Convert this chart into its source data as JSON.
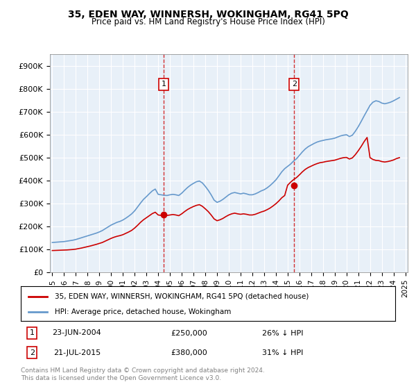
{
  "title": "35, EDEN WAY, WINNERSH, WOKINGHAM, RG41 5PQ",
  "subtitle": "Price paid vs. HM Land Registry's House Price Index (HPI)",
  "legend_line1": "35, EDEN WAY, WINNERSH, WOKINGHAM, RG41 5PQ (detached house)",
  "legend_line2": "HPI: Average price, detached house, Wokingham",
  "annotation1": [
    "1",
    "23-JUN-2004",
    "£250,000",
    "26% ↓ HPI"
  ],
  "annotation2": [
    "2",
    "21-JUL-2015",
    "£380,000",
    "31% ↓ HPI"
  ],
  "footnote": "Contains HM Land Registry data © Crown copyright and database right 2024.\nThis data is licensed under the Open Government Licence v3.0.",
  "ylim": [
    0,
    950000
  ],
  "yticks": [
    0,
    100000,
    200000,
    300000,
    400000,
    500000,
    600000,
    700000,
    800000,
    900000
  ],
  "ytick_labels": [
    "£0",
    "£100K",
    "£200K",
    "£300K",
    "£400K",
    "£500K",
    "£600K",
    "£700K",
    "£800K",
    "£900K"
  ],
  "bg_color": "#e8f0f8",
  "plot_bg": "#e8f0f8",
  "red_color": "#cc0000",
  "blue_color": "#6699cc",
  "marker1_date_idx": 9.5,
  "marker1_price": 250000,
  "marker2_date_idx": 20.5,
  "marker2_price": 380000,
  "hpi_data": {
    "years": [
      1995.0,
      1995.25,
      1995.5,
      1995.75,
      1996.0,
      1996.25,
      1996.5,
      1996.75,
      1997.0,
      1997.25,
      1997.5,
      1997.75,
      1998.0,
      1998.25,
      1998.5,
      1998.75,
      1999.0,
      1999.25,
      1999.5,
      1999.75,
      2000.0,
      2000.25,
      2000.5,
      2000.75,
      2001.0,
      2001.25,
      2001.5,
      2001.75,
      2002.0,
      2002.25,
      2002.5,
      2002.75,
      2003.0,
      2003.25,
      2003.5,
      2003.75,
      2004.0,
      2004.25,
      2004.5,
      2004.75,
      2005.0,
      2005.25,
      2005.5,
      2005.75,
      2006.0,
      2006.25,
      2006.5,
      2006.75,
      2007.0,
      2007.25,
      2007.5,
      2007.75,
      2008.0,
      2008.25,
      2008.5,
      2008.75,
      2009.0,
      2009.25,
      2009.5,
      2009.75,
      2010.0,
      2010.25,
      2010.5,
      2010.75,
      2011.0,
      2011.25,
      2011.5,
      2011.75,
      2012.0,
      2012.25,
      2012.5,
      2012.75,
      2013.0,
      2013.25,
      2013.5,
      2013.75,
      2014.0,
      2014.25,
      2014.5,
      2014.75,
      2015.0,
      2015.25,
      2015.5,
      2015.75,
      2016.0,
      2016.25,
      2016.5,
      2016.75,
      2017.0,
      2017.25,
      2017.5,
      2017.75,
      2018.0,
      2018.25,
      2018.5,
      2018.75,
      2019.0,
      2019.25,
      2019.5,
      2019.75,
      2020.0,
      2020.25,
      2020.5,
      2020.75,
      2021.0,
      2021.25,
      2021.5,
      2021.75,
      2022.0,
      2022.25,
      2022.5,
      2022.75,
      2023.0,
      2023.25,
      2023.5,
      2023.75,
      2024.0,
      2024.25,
      2024.5
    ],
    "values": [
      130000,
      131000,
      132000,
      133000,
      134000,
      136000,
      138000,
      140000,
      143000,
      147000,
      151000,
      155000,
      159000,
      163000,
      167000,
      171000,
      176000,
      182000,
      190000,
      198000,
      206000,
      212000,
      218000,
      222000,
      228000,
      236000,
      245000,
      255000,
      268000,
      285000,
      302000,
      318000,
      330000,
      343000,
      355000,
      363000,
      340000,
      338000,
      336000,
      335000,
      338000,
      340000,
      338000,
      335000,
      345000,
      358000,
      370000,
      380000,
      388000,
      395000,
      398000,
      390000,
      375000,
      358000,
      338000,
      315000,
      305000,
      310000,
      318000,
      328000,
      338000,
      345000,
      348000,
      345000,
      342000,
      345000,
      342000,
      338000,
      338000,
      342000,
      348000,
      355000,
      360000,
      368000,
      378000,
      390000,
      403000,
      420000,
      438000,
      452000,
      462000,
      472000,
      485000,
      495000,
      510000,
      525000,
      538000,
      548000,
      555000,
      562000,
      568000,
      572000,
      575000,
      578000,
      580000,
      582000,
      585000,
      590000,
      595000,
      598000,
      600000,
      592000,
      598000,
      615000,
      635000,
      658000,
      682000,
      705000,
      728000,
      742000,
      748000,
      745000,
      738000,
      735000,
      738000,
      742000,
      748000,
      755000,
      762000
    ]
  },
  "price_data": {
    "years": [
      1995.0,
      1995.25,
      1995.5,
      1995.75,
      1996.0,
      1996.25,
      1996.5,
      1996.75,
      1997.0,
      1997.25,
      1997.5,
      1997.75,
      1998.0,
      1998.25,
      1998.5,
      1998.75,
      1999.0,
      1999.25,
      1999.5,
      1999.75,
      2000.0,
      2000.25,
      2000.5,
      2000.75,
      2001.0,
      2001.25,
      2001.5,
      2001.75,
      2002.0,
      2002.25,
      2002.5,
      2002.75,
      2003.0,
      2003.25,
      2003.5,
      2003.75,
      2004.0,
      2004.25,
      2004.5,
      2004.75,
      2005.0,
      2005.25,
      2005.5,
      2005.75,
      2006.0,
      2006.25,
      2006.5,
      2006.75,
      2007.0,
      2007.25,
      2007.5,
      2007.75,
      2008.0,
      2008.25,
      2008.5,
      2008.75,
      2009.0,
      2009.25,
      2009.5,
      2009.75,
      2010.0,
      2010.25,
      2010.5,
      2010.75,
      2011.0,
      2011.25,
      2011.5,
      2011.75,
      2012.0,
      2012.25,
      2012.5,
      2012.75,
      2013.0,
      2013.25,
      2013.5,
      2013.75,
      2014.0,
      2014.25,
      2014.5,
      2014.75,
      2015.0,
      2015.25,
      2015.5,
      2015.75,
      2016.0,
      2016.25,
      2016.5,
      2016.75,
      2017.0,
      2017.25,
      2017.5,
      2017.75,
      2018.0,
      2018.25,
      2018.5,
      2018.75,
      2019.0,
      2019.25,
      2019.5,
      2019.75,
      2020.0,
      2020.25,
      2020.5,
      2020.75,
      2021.0,
      2021.25,
      2021.5,
      2021.75,
      2022.0,
      2022.25,
      2022.5,
      2022.75,
      2023.0,
      2023.25,
      2023.5,
      2023.75,
      2024.0,
      2024.25,
      2024.5
    ],
    "values": [
      95000,
      95500,
      96000,
      96500,
      97000,
      97500,
      98500,
      99500,
      101000,
      103500,
      106000,
      109000,
      112000,
      115000,
      118500,
      122000,
      126000,
      130000,
      136000,
      142000,
      148000,
      153000,
      157000,
      160000,
      164000,
      170000,
      176000,
      183000,
      193000,
      205000,
      218000,
      229000,
      238000,
      247000,
      256000,
      262000,
      250000,
      248000,
      248000,
      248000,
      250000,
      252000,
      250000,
      247000,
      255000,
      265000,
      274000,
      281000,
      287000,
      292000,
      295000,
      288000,
      277000,
      265000,
      250000,
      233000,
      225000,
      229000,
      235000,
      243000,
      250000,
      255000,
      258000,
      255000,
      253000,
      255000,
      253000,
      250000,
      250000,
      253000,
      258000,
      263000,
      267000,
      273000,
      280000,
      289000,
      299000,
      311000,
      325000,
      335000,
      380000,
      393000,
      404000,
      413000,
      425000,
      438000,
      449000,
      457000,
      463000,
      469000,
      474000,
      478000,
      480000,
      483000,
      485000,
      487000,
      489000,
      493000,
      497000,
      500000,
      501000,
      494000,
      499000,
      513000,
      530000,
      549000,
      570000,
      588000,
      500000,
      492000,
      488000,
      487000,
      483000,
      481000,
      483000,
      486000,
      490000,
      496000,
      500000
    ]
  },
  "xtick_years": [
    1995,
    1996,
    1997,
    1998,
    1999,
    2000,
    2001,
    2002,
    2003,
    2004,
    2005,
    2006,
    2007,
    2008,
    2009,
    2010,
    2011,
    2012,
    2013,
    2014,
    2015,
    2016,
    2017,
    2018,
    2019,
    2020,
    2021,
    2022,
    2023,
    2024,
    2025
  ]
}
